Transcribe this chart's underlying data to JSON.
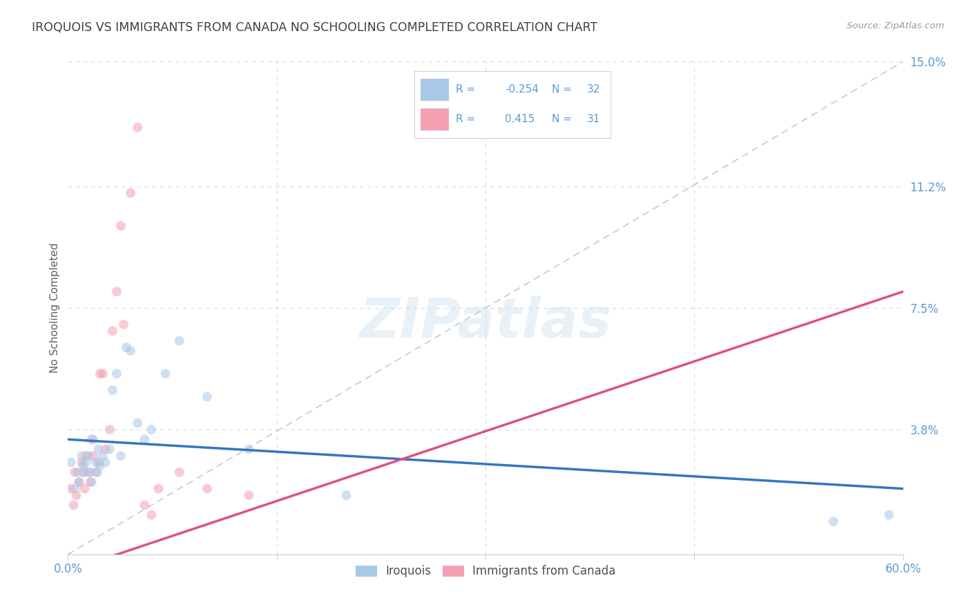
{
  "title": "IROQUOIS VS IMMIGRANTS FROM CANADA NO SCHOOLING COMPLETED CORRELATION CHART",
  "source": "Source: ZipAtlas.com",
  "ylabel": "No Schooling Completed",
  "xlim": [
    0.0,
    0.6
  ],
  "ylim": [
    0.0,
    0.15
  ],
  "watermark": "ZIPatlas",
  "blue_color": "#a8c8e8",
  "pink_color": "#f4a0b0",
  "blue_line_color": "#3575c3",
  "pink_line_color": "#e05080",
  "dashed_line_color": "#c8c8c8",
  "grid_color": "#d8d8d8",
  "title_color": "#404040",
  "axis_label_color": "#606060",
  "tick_color": "#5b9bd5",
  "iroquois_x": [
    0.002,
    0.005,
    0.007,
    0.008,
    0.01,
    0.011,
    0.012,
    0.013,
    0.015,
    0.016,
    0.017,
    0.018,
    0.02,
    0.021,
    0.022,
    0.023,
    0.025,
    0.027,
    0.03,
    0.032,
    0.035,
    0.038,
    0.042,
    0.045,
    0.05,
    0.055,
    0.06,
    0.07,
    0.08,
    0.1,
    0.13,
    0.2,
    0.55,
    0.59
  ],
  "iroquois_y": [
    0.028,
    0.02,
    0.025,
    0.022,
    0.03,
    0.027,
    0.025,
    0.028,
    0.03,
    0.025,
    0.022,
    0.035,
    0.028,
    0.025,
    0.032,
    0.027,
    0.03,
    0.028,
    0.032,
    0.05,
    0.055,
    0.03,
    0.063,
    0.062,
    0.04,
    0.035,
    0.038,
    0.055,
    0.065,
    0.048,
    0.032,
    0.018,
    0.01,
    0.012
  ],
  "canada_x": [
    0.002,
    0.004,
    0.005,
    0.006,
    0.008,
    0.01,
    0.011,
    0.012,
    0.013,
    0.015,
    0.016,
    0.017,
    0.018,
    0.02,
    0.022,
    0.023,
    0.025,
    0.027,
    0.03,
    0.032,
    0.035,
    0.038,
    0.04,
    0.045,
    0.05,
    0.055,
    0.06,
    0.065,
    0.08,
    0.1,
    0.13
  ],
  "canada_y": [
    0.02,
    0.015,
    0.025,
    0.018,
    0.022,
    0.028,
    0.025,
    0.02,
    0.03,
    0.025,
    0.022,
    0.035,
    0.03,
    0.025,
    0.028,
    0.055,
    0.055,
    0.032,
    0.038,
    0.068,
    0.08,
    0.1,
    0.07,
    0.11,
    0.13,
    0.015,
    0.012,
    0.02,
    0.025,
    0.02,
    0.018
  ],
  "blue_trend": [
    0.035,
    0.02
  ],
  "pink_trend": [
    -0.005,
    0.08
  ],
  "marker_size": 100,
  "alpha": 0.55
}
